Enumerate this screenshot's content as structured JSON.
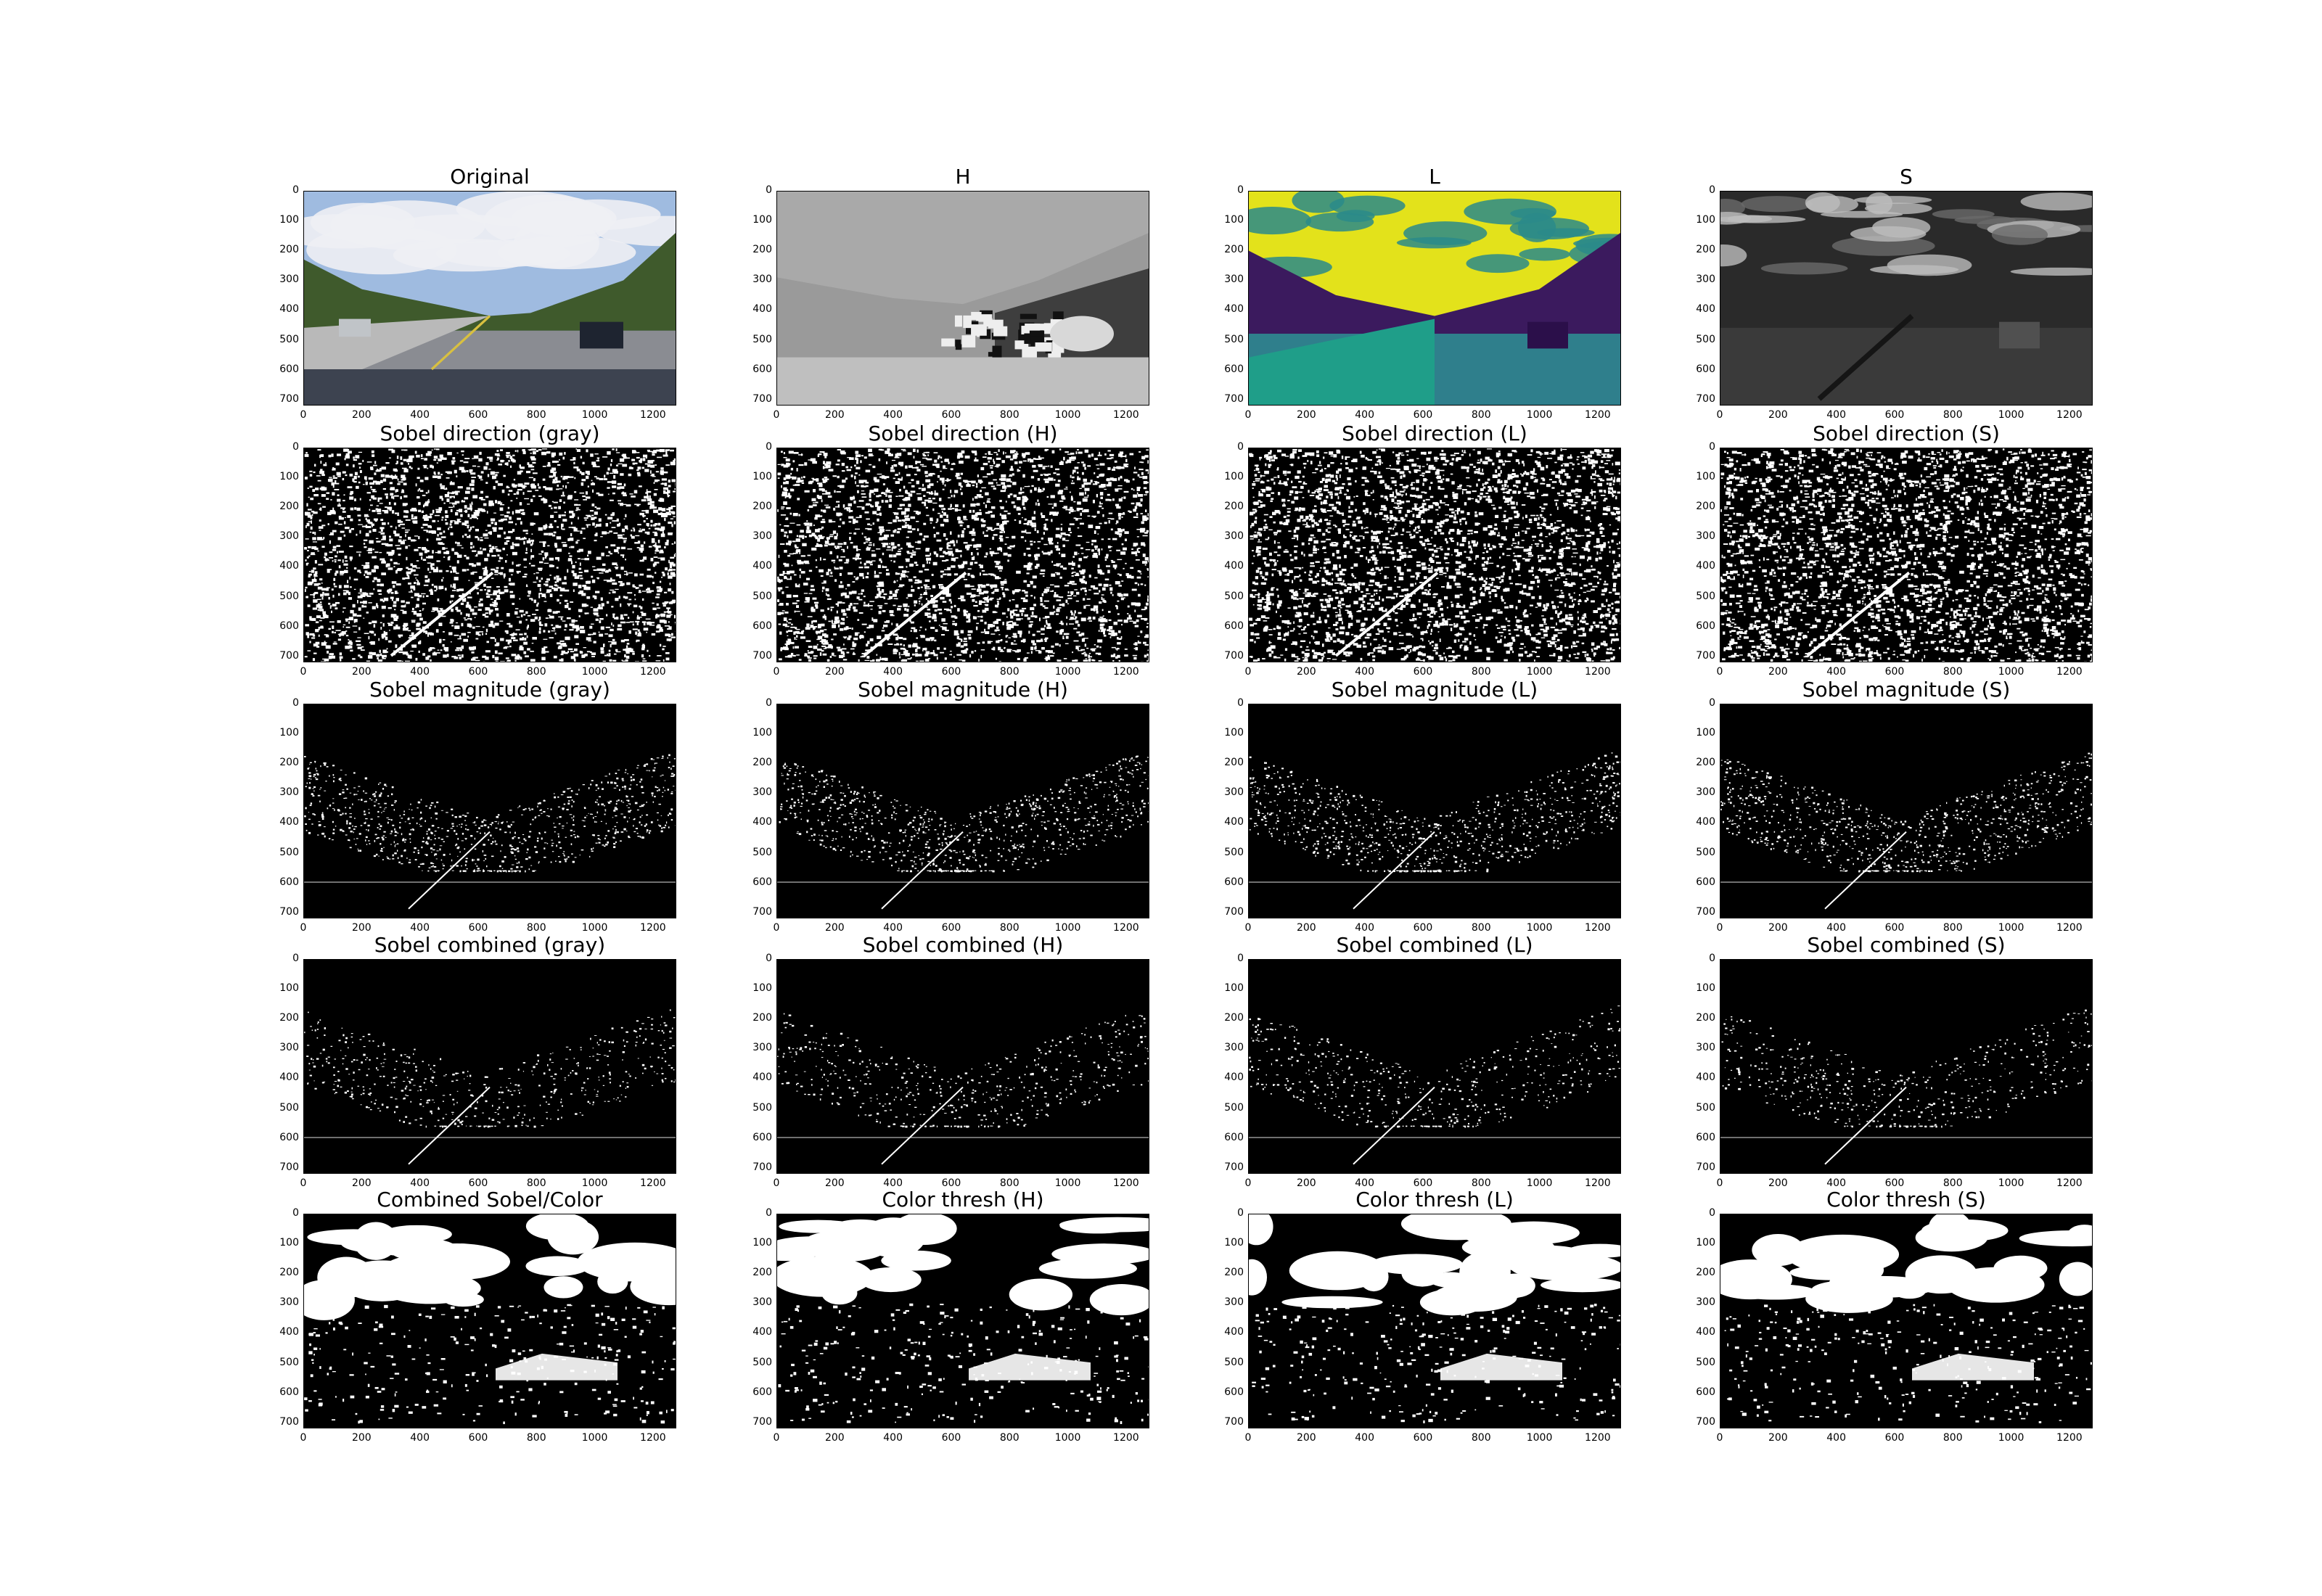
{
  "figure": {
    "x_ticks": [
      "0",
      "200",
      "400",
      "600",
      "800",
      "1000",
      "1200"
    ],
    "y_ticks": [
      "0",
      "100",
      "200",
      "300",
      "400",
      "500",
      "600",
      "700"
    ],
    "x_range": [
      0,
      1280
    ],
    "y_range": [
      0,
      720
    ],
    "rows": [
      [
        "Original",
        "H",
        "L",
        "S"
      ],
      [
        "Sobel direction (gray)",
        "Sobel direction (H)",
        "Sobel direction (L)",
        "Sobel direction (S)"
      ],
      [
        "Sobel magnitude (gray)",
        "Sobel magnitude (H)",
        "Sobel magnitude (L)",
        "Sobel magnitude (S)"
      ],
      [
        "Sobel combined (gray)",
        "Sobel combined (H)",
        "Sobel combined (L)",
        "Sobel combined (S)"
      ],
      [
        "Combined Sobel/Color",
        "Color thresh (H)",
        "Color thresh (L)",
        "Color thresh (S)"
      ]
    ]
  },
  "panel_styles": [
    [
      "color-photo",
      "gray-channel",
      "viridis-channel",
      "gray-dark-channel"
    ],
    [
      "noise-binary",
      "noise-binary",
      "noise-binary",
      "noise-binary"
    ],
    [
      "edge-binary",
      "edge-binary",
      "edge-binary",
      "edge-binary"
    ],
    [
      "edge-sparse-binary",
      "edge-sparse-binary",
      "edge-sparse-binary",
      "edge-sparse-binary"
    ],
    [
      "blob-binary",
      "blob-binary",
      "blob-binary",
      "blob-binary"
    ]
  ],
  "colors": {
    "sky": "#9fbbe0",
    "cloud": "#eef0f4",
    "trees": "#3f5a2c",
    "road": "#8a8c92",
    "viridis_low": "#3b1a5e",
    "viridis_mid": "#2a8a8a",
    "viridis_high": "#e3e21b",
    "binary_bg": "#000000",
    "binary_fg": "#ffffff"
  }
}
